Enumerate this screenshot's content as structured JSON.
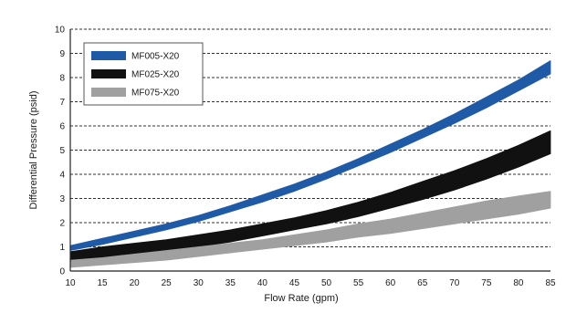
{
  "chart_data": {
    "type": "area",
    "xlabel": "Flow Rate (gpm)",
    "ylabel": "Differential Pressure (psid)",
    "xlim": [
      10,
      85
    ],
    "ylim": [
      0,
      10
    ],
    "x_ticks": [
      10,
      15,
      20,
      25,
      30,
      35,
      40,
      45,
      50,
      55,
      60,
      65,
      70,
      75,
      80,
      85
    ],
    "y_ticks": [
      0,
      1,
      2,
      3,
      4,
      5,
      6,
      7,
      8,
      9,
      10
    ],
    "grid": "horizontal dashed",
    "legend_position": "top-left",
    "x": [
      10,
      15,
      20,
      25,
      30,
      35,
      40,
      45,
      50,
      55,
      60,
      65,
      70,
      75,
      80,
      85
    ],
    "series": [
      {
        "name": "MF005-X20",
        "color": "#1f5aa6",
        "upper": [
          1.05,
          1.35,
          1.65,
          1.95,
          2.3,
          2.7,
          3.15,
          3.6,
          4.1,
          4.65,
          5.25,
          5.85,
          6.5,
          7.2,
          7.9,
          8.7
        ],
        "lower": [
          0.85,
          1.1,
          1.4,
          1.7,
          2.05,
          2.45,
          2.85,
          3.3,
          3.8,
          4.35,
          4.9,
          5.5,
          6.1,
          6.75,
          7.45,
          8.15
        ]
      },
      {
        "name": "MF025-X20",
        "color": "#111111",
        "upper": [
          0.8,
          1.0,
          1.15,
          1.3,
          1.5,
          1.7,
          1.95,
          2.2,
          2.5,
          2.85,
          3.25,
          3.7,
          4.15,
          4.65,
          5.2,
          5.8
        ],
        "lower": [
          0.3,
          0.5,
          0.7,
          0.85,
          1.0,
          1.2,
          1.45,
          1.7,
          1.95,
          2.25,
          2.6,
          2.95,
          3.35,
          3.8,
          4.3,
          4.85
        ]
      },
      {
        "name": "MF075-X20",
        "color": "#a0a0a0",
        "upper": [
          0.45,
          0.55,
          0.7,
          0.85,
          1.0,
          1.15,
          1.3,
          1.5,
          1.7,
          1.95,
          2.15,
          2.4,
          2.65,
          2.9,
          3.1,
          3.3
        ],
        "lower": [
          0.15,
          0.25,
          0.35,
          0.45,
          0.6,
          0.75,
          0.9,
          1.05,
          1.2,
          1.4,
          1.55,
          1.75,
          1.95,
          2.15,
          2.35,
          2.6
        ]
      }
    ]
  }
}
